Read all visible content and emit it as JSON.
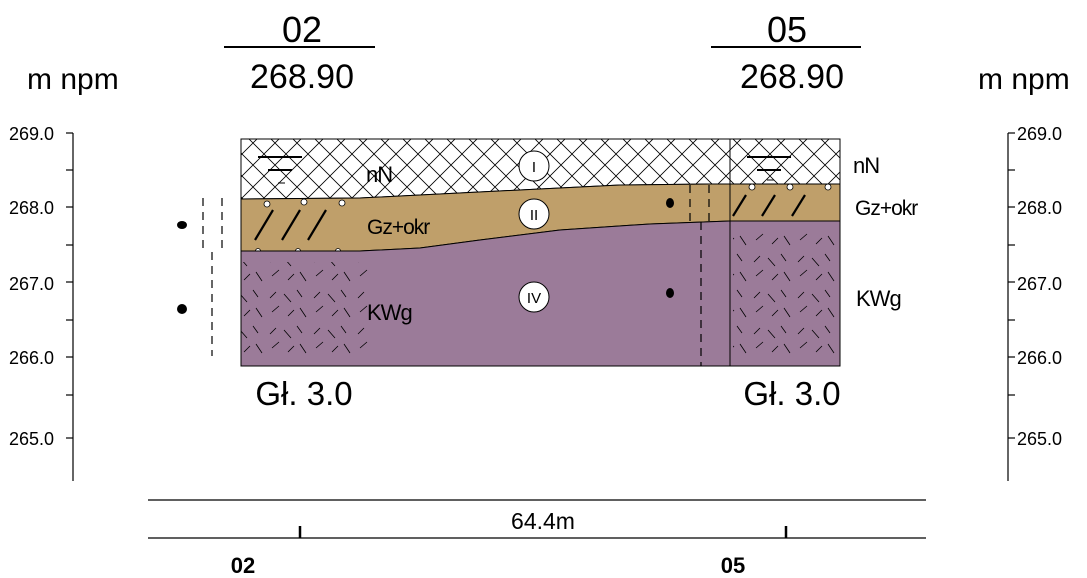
{
  "boreholes": [
    {
      "id": "02",
      "elevation": "268.90",
      "depth_label": "Gł. 3.0",
      "bottom_label": "02"
    },
    {
      "id": "05",
      "elevation": "268.90",
      "depth_label": "Gł. 3.0",
      "bottom_label": "05"
    }
  ],
  "axis": {
    "unit_label": "m npm",
    "ticks": [
      "269.0",
      "268.0",
      "267.0",
      "266.0",
      "265.0"
    ]
  },
  "layers": [
    {
      "code": "nN",
      "roman": "I",
      "color": "#ffffff"
    },
    {
      "code": "Gz+okr",
      "roman": "II",
      "color": "#bf9f6a"
    },
    {
      "code": "KWg",
      "roman": "IV",
      "color": "#9b7b99"
    }
  ],
  "distance_label": "64.4m"
}
